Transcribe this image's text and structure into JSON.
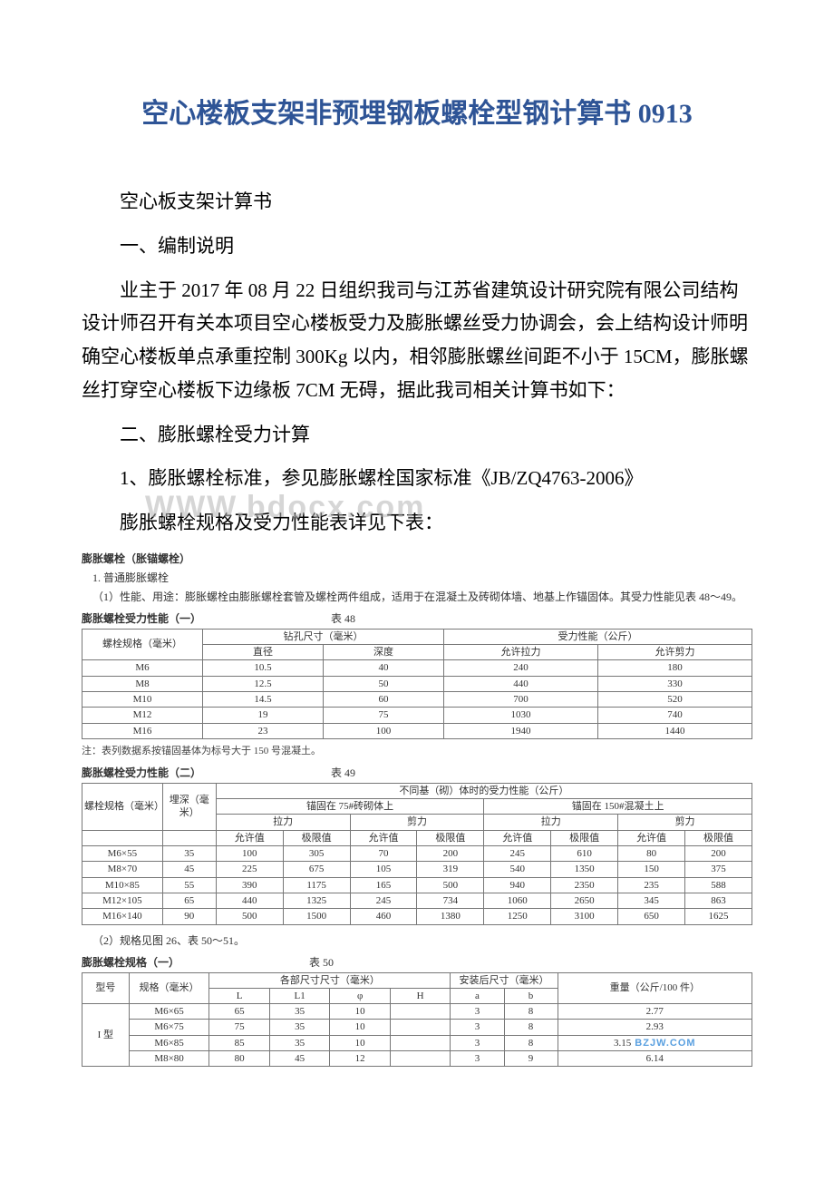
{
  "title": "空心楼板支架非预埋钢板螺栓型钢计算书 0913",
  "p1": "空心板支架计算书",
  "p2": "一、编制说明",
  "p3": "业主于 2017 年 08 月 22 日组织我司与江苏省建筑设计研究院有限公司结构设计师召开有关本项目空心楼板受力及膨胀螺丝受力协调会，会上结构设计师明确空心楼板单点承重控制 300Kg 以内，相邻膨胀螺丝间距不小于 15CM，膨胀螺丝打穿空心楼板下边缘板 7CM 无碍，据此我司相关计算书如下：",
  "p4": "二、膨胀螺栓受力计算",
  "p5": "1、膨胀螺栓标准，参见膨胀螺栓国家标准《JB/ZQ4763-2006》",
  "p6": "膨胀螺栓规格及受力性能表详见下表：",
  "watermark": "WWW.bdocx.com",
  "sb": {
    "h1": "膨胀螺栓（胀锚螺栓）",
    "s1": "1. 普通膨胀螺栓",
    "desc1": "（1）性能、用途：膨胀螺栓由膨胀螺栓套管及螺栓两件组成，适用于在混凝土及砖砌体墙、地基上作锚固体。其受力性能见表 48～49。",
    "cap48": "膨胀螺栓受力性能（一）",
    "cap48no": "表 48",
    "t48": {
      "h_spec": "螺栓规格（毫米）",
      "h_drill": "钻孔尺寸（毫米）",
      "h_force": "受力性能（公斤）",
      "h_dia": "直径",
      "h_depth": "深度",
      "h_pull": "允许拉力",
      "h_shear": "允许剪力",
      "rows": [
        [
          "M6",
          "10.5",
          "40",
          "240",
          "180"
        ],
        [
          "M8",
          "12.5",
          "50",
          "440",
          "330"
        ],
        [
          "M10",
          "14.5",
          "60",
          "700",
          "520"
        ],
        [
          "M12",
          "19",
          "75",
          "1030",
          "740"
        ],
        [
          "M16",
          "23",
          "100",
          "1940",
          "1440"
        ]
      ]
    },
    "note48": "注：表列数据系按锚固基体为标号大于 150 号混凝土。",
    "cap49": "膨胀螺栓受力性能（二）",
    "cap49no": "表 49",
    "t49": {
      "h_spec": "螺栓规格（毫米）",
      "h_depth": "埋深（毫米）",
      "h_top": "不同基（砌）体时的受力性能（公斤）",
      "h_brick": "锚固在 75#砖砌体上",
      "h_conc": "锚固在 150#混凝土上",
      "h_pull": "拉力",
      "h_shear": "剪力",
      "h_allow": "允许值",
      "h_limit": "极限值",
      "rows": [
        [
          "M6×55",
          "35",
          "100",
          "305",
          "70",
          "200",
          "245",
          "610",
          "80",
          "200"
        ],
        [
          "M8×70",
          "45",
          "225",
          "675",
          "105",
          "319",
          "540",
          "1350",
          "150",
          "375"
        ],
        [
          "M10×85",
          "55",
          "390",
          "1175",
          "165",
          "500",
          "940",
          "2350",
          "235",
          "588"
        ],
        [
          "M12×105",
          "65",
          "440",
          "1325",
          "245",
          "734",
          "1060",
          "2650",
          "345",
          "863"
        ],
        [
          "M16×140",
          "90",
          "500",
          "1500",
          "460",
          "1380",
          "1250",
          "3100",
          "650",
          "1625"
        ]
      ]
    },
    "desc2": "（2）规格见图 26、表 50～51。",
    "cap50": "膨胀螺栓规格（一）",
    "cap50no": "表 50",
    "t50": {
      "h_type": "型号",
      "h_spec": "规格（毫米）",
      "h_dims": "各部尺寸尺寸（毫米）",
      "h_install": "安装后尺寸（毫米）",
      "h_weight": "重量（公斤/100 件）",
      "c_L": "L",
      "c_L1": "L1",
      "c_phi": "φ",
      "c_H": "H",
      "c_a": "a",
      "c_b": "b",
      "type1": "I 型",
      "rows": [
        [
          "M6×65",
          "65",
          "35",
          "10",
          "",
          "3",
          "8",
          "2.77"
        ],
        [
          "M6×75",
          "75",
          "35",
          "10",
          "",
          "3",
          "8",
          "2.93"
        ],
        [
          "M6×85",
          "85",
          "35",
          "10",
          "",
          "3",
          "8",
          "3.15"
        ],
        [
          "M8×80",
          "80",
          "45",
          "12",
          "",
          "3",
          "9",
          "6.14"
        ]
      ],
      "logo": "BZJW.COM"
    }
  }
}
